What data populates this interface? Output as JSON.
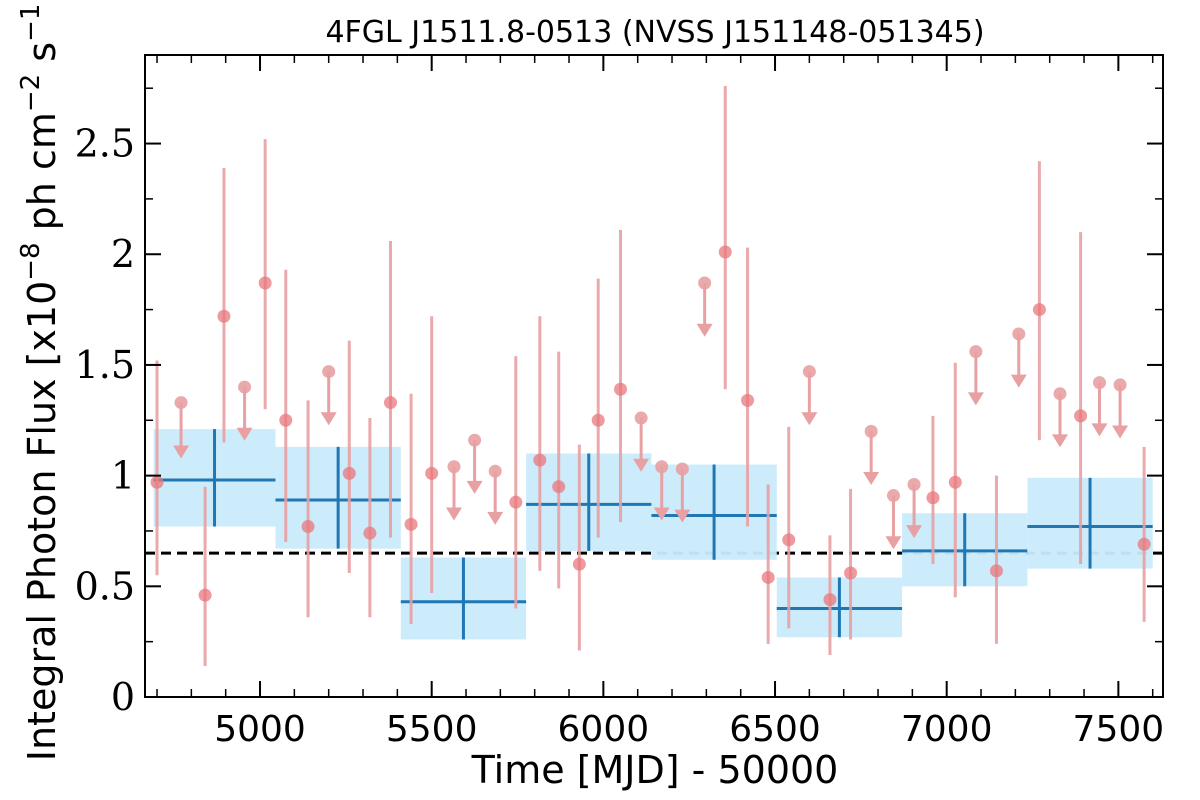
{
  "chart_data": {
    "type": "scatter",
    "title": "4FGL J1511.8-0513 (NVSS J151148-051345)",
    "xlabel": "Time [MJD] - 50000",
    "ylabel": "Integral Photon Flux [x10",
    "ylabel_exp1": "−8",
    "ylabel_mid": " ph cm",
    "ylabel_exp2": "−2",
    "ylabel_mid2": " s",
    "ylabel_exp3": "−1",
    "ylabel_end": "]",
    "xlim": [
      4665,
      7630
    ],
    "ylim": [
      0,
      2.9
    ],
    "x_ticks": [
      5000,
      5500,
      6000,
      6500,
      7000,
      7500
    ],
    "x_tick_labels": [
      "5000",
      "5500",
      "6000",
      "6500",
      "7000",
      "7500"
    ],
    "y_ticks": [
      0,
      0.5,
      1,
      1.5,
      2,
      2.5
    ],
    "y_tick_labels": [
      "0",
      "0.5",
      "1",
      "1.5",
      "2",
      "2.5"
    ],
    "mean_flux": 0.65,
    "colors": {
      "points": "#e8777c",
      "error_bars": "#e8a0a2",
      "bin_fill": "#c9ebfb",
      "bin_line": "#1f77b4",
      "mean_line": "#000000"
    },
    "points": [
      {
        "x": 4700,
        "y": 0.97,
        "ylo": 0.55,
        "yhi": 1.52
      },
      {
        "x": 4840,
        "y": 0.46,
        "ylo": 0.14,
        "yhi": 0.95
      },
      {
        "x": 4895,
        "y": 1.72,
        "ylo": 1.15,
        "yhi": 2.39
      },
      {
        "x": 5015,
        "y": 1.87,
        "ylo": 1.3,
        "yhi": 2.52
      },
      {
        "x": 5075,
        "y": 1.25,
        "ylo": 0.7,
        "yhi": 1.93
      },
      {
        "x": 5140,
        "y": 0.77,
        "ylo": 0.36,
        "yhi": 1.34
      },
      {
        "x": 5260,
        "y": 1.01,
        "ylo": 0.56,
        "yhi": 1.61
      },
      {
        "x": 5320,
        "y": 0.74,
        "ylo": 0.36,
        "yhi": 1.26
      },
      {
        "x": 5380,
        "y": 1.33,
        "ylo": 0.72,
        "yhi": 2.06
      },
      {
        "x": 5440,
        "y": 0.78,
        "ylo": 0.33,
        "yhi": 1.37
      },
      {
        "x": 5500,
        "y": 1.01,
        "ylo": 0.47,
        "yhi": 1.72
      },
      {
        "x": 5745,
        "y": 0.88,
        "ylo": 0.4,
        "yhi": 1.54
      },
      {
        "x": 5815,
        "y": 1.07,
        "ylo": 0.57,
        "yhi": 1.72
      },
      {
        "x": 5870,
        "y": 0.95,
        "ylo": 0.49,
        "yhi": 1.56
      },
      {
        "x": 5930,
        "y": 0.6,
        "ylo": 0.21,
        "yhi": 1.14
      },
      {
        "x": 5985,
        "y": 1.25,
        "ylo": 0.72,
        "yhi": 1.89
      },
      {
        "x": 6050,
        "y": 1.39,
        "ylo": 0.79,
        "yhi": 2.11
      },
      {
        "x": 6355,
        "y": 2.01,
        "ylo": 1.39,
        "yhi": 2.76
      },
      {
        "x": 6420,
        "y": 1.34,
        "ylo": 0.77,
        "yhi": 2.03
      },
      {
        "x": 6480,
        "y": 0.54,
        "ylo": 0.24,
        "yhi": 0.96
      },
      {
        "x": 6540,
        "y": 0.71,
        "ylo": 0.31,
        "yhi": 1.22
      },
      {
        "x": 6660,
        "y": 0.44,
        "ylo": 0.19,
        "yhi": 0.73
      },
      {
        "x": 6720,
        "y": 0.56,
        "ylo": 0.26,
        "yhi": 0.94
      },
      {
        "x": 6960,
        "y": 0.9,
        "ylo": 0.6,
        "yhi": 1.27
      },
      {
        "x": 7025,
        "y": 0.97,
        "ylo": 0.45,
        "yhi": 1.51
      },
      {
        "x": 7145,
        "y": 0.57,
        "ylo": 0.24,
        "yhi": 1.0
      },
      {
        "x": 7270,
        "y": 1.75,
        "ylo": 1.16,
        "yhi": 2.42
      },
      {
        "x": 7390,
        "y": 1.27,
        "ylo": 0.6,
        "yhi": 2.1
      },
      {
        "x": 7575,
        "y": 0.69,
        "ylo": 0.34,
        "yhi": 1.13
      }
    ],
    "upper_limits": [
      {
        "x": 4770,
        "y": 1.33,
        "arrow_to": 1.1
      },
      {
        "x": 4955,
        "y": 1.4,
        "arrow_to": 1.18
      },
      {
        "x": 5200,
        "y": 1.47,
        "arrow_to": 1.25
      },
      {
        "x": 5565,
        "y": 1.04,
        "arrow_to": 0.82
      },
      {
        "x": 5625,
        "y": 1.16,
        "arrow_to": 0.94
      },
      {
        "x": 5685,
        "y": 1.02,
        "arrow_to": 0.8
      },
      {
        "x": 6110,
        "y": 1.26,
        "arrow_to": 1.04
      },
      {
        "x": 6170,
        "y": 1.04,
        "arrow_to": 0.82
      },
      {
        "x": 6230,
        "y": 1.03,
        "arrow_to": 0.81
      },
      {
        "x": 6295,
        "y": 1.87,
        "arrow_to": 1.65
      },
      {
        "x": 6600,
        "y": 1.47,
        "arrow_to": 1.25
      },
      {
        "x": 6780,
        "y": 1.2,
        "arrow_to": 0.98
      },
      {
        "x": 6845,
        "y": 0.91,
        "arrow_to": 0.69
      },
      {
        "x": 6905,
        "y": 0.96,
        "arrow_to": 0.74
      },
      {
        "x": 7085,
        "y": 1.56,
        "arrow_to": 1.34
      },
      {
        "x": 7210,
        "y": 1.64,
        "arrow_to": 1.42
      },
      {
        "x": 7330,
        "y": 1.37,
        "arrow_to": 1.15
      },
      {
        "x": 7445,
        "y": 1.42,
        "arrow_to": 1.2
      },
      {
        "x": 7505,
        "y": 1.41,
        "arrow_to": 1.19
      }
    ],
    "bins": [
      {
        "x0": 4690,
        "x1": 5045,
        "y": 0.98,
        "ylo": 0.77,
        "yhi": 1.21
      },
      {
        "x0": 5045,
        "x1": 5410,
        "y": 0.89,
        "ylo": 0.67,
        "yhi": 1.13
      },
      {
        "x0": 5410,
        "x1": 5775,
        "y": 0.43,
        "ylo": 0.26,
        "yhi": 0.63
      },
      {
        "x0": 5775,
        "x1": 6140,
        "y": 0.87,
        "ylo": 0.66,
        "yhi": 1.1
      },
      {
        "x0": 6140,
        "x1": 6505,
        "y": 0.82,
        "ylo": 0.62,
        "yhi": 1.05
      },
      {
        "x0": 6505,
        "x1": 6870,
        "y": 0.4,
        "ylo": 0.27,
        "yhi": 0.54
      },
      {
        "x0": 6870,
        "x1": 7235,
        "y": 0.66,
        "ylo": 0.5,
        "yhi": 0.83
      },
      {
        "x0": 7235,
        "x1": 7600,
        "y": 0.77,
        "ylo": 0.58,
        "yhi": 0.99
      }
    ]
  }
}
